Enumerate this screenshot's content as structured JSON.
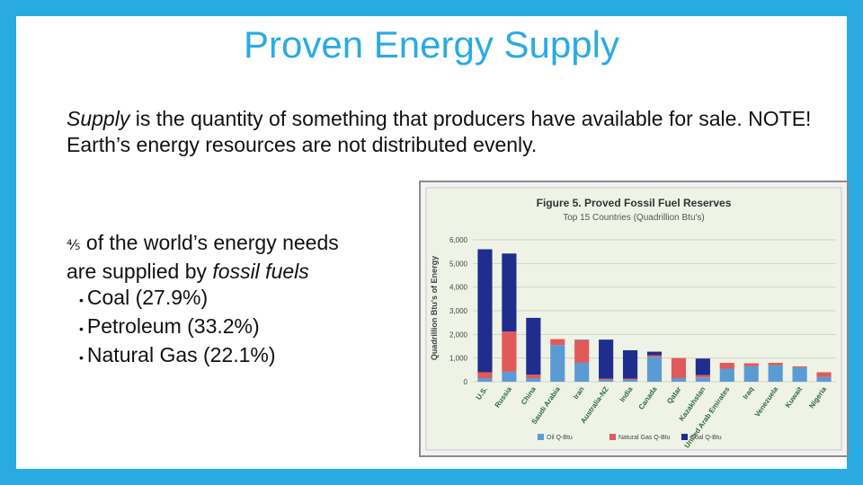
{
  "slide": {
    "title": "Proven Energy Supply",
    "paragraph_italic": "Supply",
    "paragraph_rest": " is the quantity of something that producers have available for sale. NOTE! Earth’s energy resources are not distributed evenly.",
    "fraction": "⅘",
    "lead_line1": " of the world’s energy needs",
    "lead_line2_a": "are supplied by ",
    "lead_line2_b": "fossil fuels",
    "bullets": [
      "Coal (27.9%)",
      "Petroleum (33.2%)",
      "Natural Gas (22.1%)"
    ],
    "bullet_symbol": "•"
  },
  "chart_data": {
    "type": "bar",
    "stacked": true,
    "title": "Figure 5. Proved Fossil Fuel Reserves",
    "subtitle": "Top 15 Countries (Quadrillion Btu's)",
    "ylabel": "Quadrillion Btu's of Energy",
    "ylim": [
      0,
      6000
    ],
    "yticks": [
      "0",
      "1,000",
      "2,000",
      "3,000",
      "4,000",
      "5,000",
      "6,000"
    ],
    "grid": true,
    "legend_position": "bottom",
    "categories": [
      "U.S.",
      "Russia",
      "China",
      "Saudi Arabia",
      "Iran",
      "Australia-NZ",
      "India",
      "Canada",
      "Qatar",
      "Kazakhstan",
      "United Arab Emirates",
      "Iraq",
      "Venezuela",
      "Kuwait",
      "Nigeria"
    ],
    "series": [
      {
        "name": "Oil Q-Btu",
        "color": "#5b9bd5",
        "values": [
          150,
          420,
          150,
          1550,
          800,
          80,
          80,
          1050,
          150,
          180,
          550,
          650,
          700,
          600,
          200
        ]
      },
      {
        "name": "Natural Gas Q-Btu",
        "color": "#e05a5a",
        "values": [
          250,
          1700,
          150,
          250,
          950,
          50,
          50,
          70,
          850,
          100,
          250,
          130,
          100,
          50,
          200
        ]
      },
      {
        "name": "Coal Q-Btu",
        "color": "#1f2d8f",
        "values": [
          5200,
          3300,
          2400,
          0,
          20,
          1650,
          1200,
          150,
          0,
          700,
          0,
          0,
          0,
          0,
          0
        ]
      }
    ]
  }
}
